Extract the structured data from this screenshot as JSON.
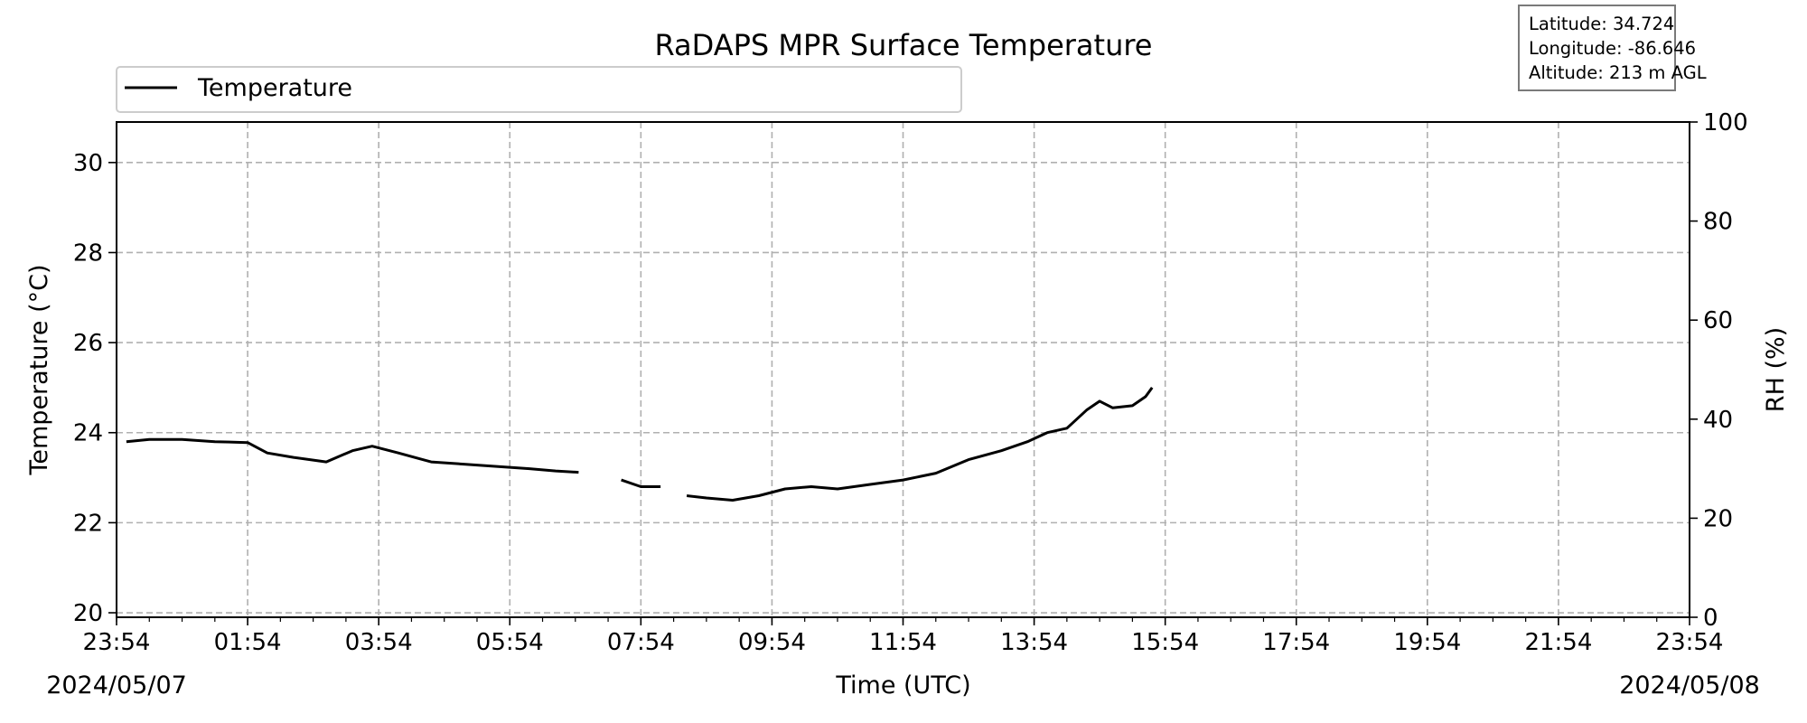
{
  "chart_data": {
    "type": "line",
    "title": "RaDAPS MPR Surface Temperature",
    "xlabel": "Time (UTC)",
    "ylabel_left": "Temperature ($^\\circ$C)",
    "ylabel_left_display": "Temperature (°C)",
    "ylabel_right": "RH (%)",
    "x_tick_labels": [
      "23:54",
      "01:54",
      "03:54",
      "05:54",
      "07:54",
      "09:54",
      "11:54",
      "13:54",
      "15:54",
      "17:54",
      "19:54",
      "21:54",
      "23:54"
    ],
    "x_range_hours": [
      0,
      24
    ],
    "date_start": "2024/05/07",
    "date_end": "2024/05/08",
    "ylim_left": [
      19.9,
      30.9
    ],
    "yticks_left": [
      20,
      22,
      24,
      26,
      28,
      30
    ],
    "ylim_right": [
      0,
      100
    ],
    "yticks_right": [
      0,
      20,
      40,
      60,
      80,
      100
    ],
    "grid": true,
    "legend_position": "top-left",
    "station": {
      "latitude_label": "Latitude: 34.724",
      "longitude_label": "Longitude: -86.646",
      "altitude_label": "Altitude: 213 m AGL"
    },
    "series": [
      {
        "name": "Temperature",
        "axis": "left",
        "color": "#000000",
        "segments": [
          [
            [
              0.15,
              23.8
            ],
            [
              0.5,
              23.85
            ],
            [
              1.0,
              23.85
            ],
            [
              1.5,
              23.8
            ],
            [
              2.0,
              23.78
            ],
            [
              2.3,
              23.55
            ],
            [
              2.7,
              23.45
            ],
            [
              3.2,
              23.35
            ],
            [
              3.6,
              23.6
            ],
            [
              3.9,
              23.7
            ],
            [
              4.3,
              23.55
            ],
            [
              4.8,
              23.35
            ],
            [
              5.3,
              23.3
            ],
            [
              5.8,
              23.25
            ],
            [
              6.3,
              23.2
            ],
            [
              6.7,
              23.15
            ],
            [
              7.05,
              23.12
            ]
          ],
          [
            [
              7.7,
              22.95
            ],
            [
              8.0,
              22.8
            ],
            [
              8.3,
              22.8
            ]
          ],
          [
            [
              8.7,
              22.6
            ],
            [
              9.0,
              22.55
            ],
            [
              9.4,
              22.5
            ],
            [
              9.8,
              22.6
            ],
            [
              10.2,
              22.75
            ],
            [
              10.6,
              22.8
            ],
            [
              11.0,
              22.75
            ],
            [
              11.5,
              22.85
            ],
            [
              12.0,
              22.95
            ],
            [
              12.5,
              23.1
            ],
            [
              13.0,
              23.4
            ],
            [
              13.5,
              23.6
            ],
            [
              13.9,
              23.8
            ],
            [
              14.2,
              24.0
            ],
            [
              14.5,
              24.1
            ],
            [
              14.8,
              24.5
            ],
            [
              15.0,
              24.7
            ],
            [
              15.2,
              24.55
            ],
            [
              15.5,
              24.6
            ],
            [
              15.7,
              24.8
            ],
            [
              15.8,
              25.0
            ]
          ]
        ]
      }
    ]
  }
}
